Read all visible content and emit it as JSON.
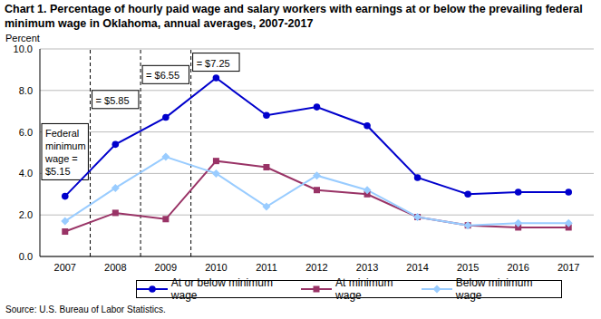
{
  "chart_data": {
    "type": "line",
    "title": "Chart 1. Percentage of hourly paid wage and salary workers with earnings at or below the prevailing federal minimum wage in Oklahoma, annual averages, 2007-2017",
    "y_label": "Percent",
    "source": "Source: U.S. Bureau of Labor Statistics.",
    "categories": [
      "2007",
      "2008",
      "2009",
      "2010",
      "2011",
      "2012",
      "2013",
      "2014",
      "2015",
      "2016",
      "2017"
    ],
    "series": [
      {
        "name": "At or below minimum wage",
        "color": "#0000cc",
        "marker": "circle",
        "values": [
          2.9,
          5.4,
          6.7,
          8.6,
          6.8,
          7.2,
          6.3,
          3.8,
          3.0,
          3.1,
          3.1
        ]
      },
      {
        "name": "At minimum wage",
        "color": "#993366",
        "marker": "square",
        "values": [
          1.2,
          2.1,
          1.8,
          4.6,
          4.3,
          3.2,
          3.0,
          1.9,
          1.5,
          1.4,
          1.4
        ]
      },
      {
        "name": "Below minimum wage",
        "color": "#99ccff",
        "marker": "diamond",
        "values": [
          1.7,
          3.3,
          4.8,
          4.0,
          2.4,
          3.9,
          3.2,
          1.9,
          1.5,
          1.6,
          1.6
        ]
      }
    ],
    "ylim": [
      0,
      10
    ],
    "yticks": [
      {
        "value": 0,
        "label": "0.0"
      },
      {
        "value": 2,
        "label": "2.0"
      },
      {
        "value": 4,
        "label": "4.0"
      },
      {
        "value": 6,
        "label": "6.0"
      },
      {
        "value": 8,
        "label": "8.0"
      },
      {
        "value": 10,
        "label": "10.0"
      }
    ],
    "grid": true,
    "legend": "bottom",
    "annotations": [
      {
        "text": "Federal minimum wage = $5.15",
        "category": "2007"
      },
      {
        "text": "= $5.85",
        "category": "2008"
      },
      {
        "text": "= $6.55",
        "category": "2009"
      },
      {
        "text": "= $7.25",
        "category": "2010"
      }
    ]
  }
}
